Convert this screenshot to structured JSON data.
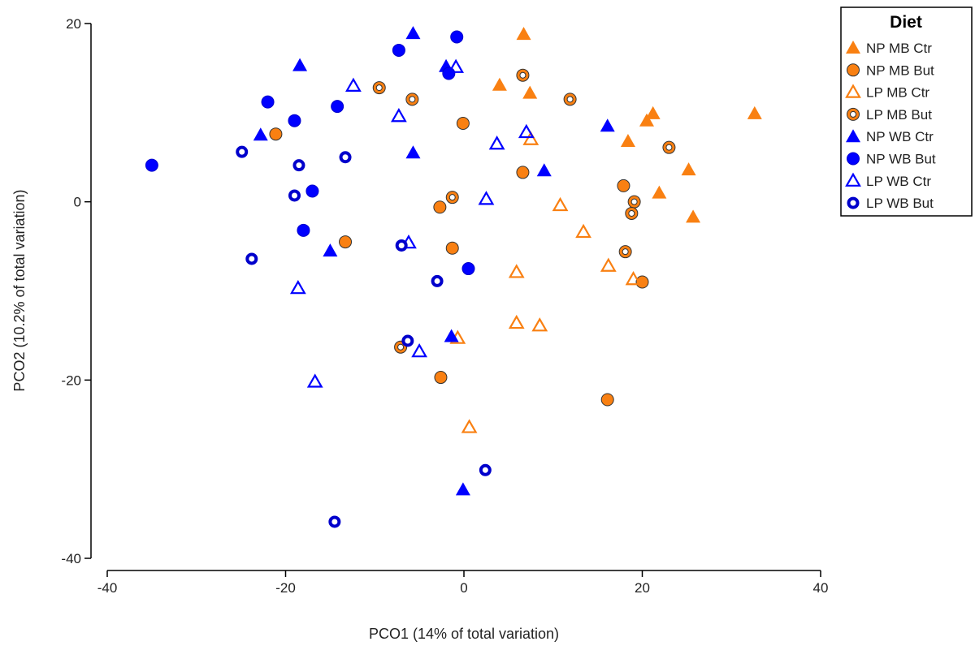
{
  "chart_data": {
    "type": "scatter",
    "xlabel": "PCO1 (14% of total variation)",
    "ylabel": "PCO2 (10.2% of total variation)",
    "xlim": [
      -40,
      40
    ],
    "ylim": [
      -40,
      20
    ],
    "xticks": [
      -40,
      -20,
      0,
      20,
      40
    ],
    "yticks": [
      -40,
      -20,
      0,
      20
    ],
    "grid": false,
    "legend": {
      "title": "Diet",
      "placement": "top-right"
    },
    "colors": {
      "orange": "#f98012",
      "blue": "#0000ff"
    },
    "series": [
      {
        "name": "NP MB Ctr",
        "marker": "triangle-filled",
        "color": "#f98012",
        "points": [
          [
            6.7,
            18.8
          ],
          [
            4.0,
            13.1
          ],
          [
            7.4,
            12.2
          ],
          [
            21.2,
            9.9
          ],
          [
            20.5,
            9.1
          ],
          [
            18.4,
            6.8
          ],
          [
            25.2,
            3.6
          ],
          [
            21.9,
            1.0
          ],
          [
            25.7,
            -1.7
          ],
          [
            32.6,
            9.9
          ]
        ]
      },
      {
        "name": "NP MB But",
        "marker": "circle-filled",
        "color": "#f98012",
        "points": [
          [
            -21.1,
            7.6
          ],
          [
            -0.1,
            8.8
          ],
          [
            6.6,
            3.3
          ],
          [
            17.9,
            1.8
          ],
          [
            -2.7,
            -0.6
          ],
          [
            -13.3,
            -4.5
          ],
          [
            -1.3,
            -5.2
          ],
          [
            20.0,
            -9.0
          ],
          [
            -2.6,
            -19.7
          ],
          [
            16.1,
            -22.2
          ]
        ]
      },
      {
        "name": "LP MB Ctr",
        "marker": "triangle-open",
        "color": "#f98012",
        "points": [
          [
            7.5,
            7.0
          ],
          [
            10.8,
            -0.4
          ],
          [
            13.4,
            -3.4
          ],
          [
            16.2,
            -7.2
          ],
          [
            19.0,
            -8.7
          ],
          [
            5.9,
            -7.9
          ],
          [
            5.9,
            -13.6
          ],
          [
            8.5,
            -13.9
          ],
          [
            -0.7,
            -15.3
          ],
          [
            0.6,
            -25.3
          ]
        ]
      },
      {
        "name": "LP MB But",
        "marker": "ring",
        "color": "#f98012",
        "points": [
          [
            -9.5,
            12.8
          ],
          [
            -5.8,
            11.5
          ],
          [
            6.6,
            14.2
          ],
          [
            11.9,
            11.5
          ],
          [
            23.0,
            6.1
          ],
          [
            19.1,
            0.0
          ],
          [
            18.8,
            -1.3
          ],
          [
            -1.3,
            0.5
          ],
          [
            18.1,
            -5.6
          ],
          [
            -7.1,
            -16.3
          ]
        ]
      },
      {
        "name": "NP WB Ctr",
        "marker": "triangle-filled",
        "color": "#0000ff",
        "points": [
          [
            -5.7,
            18.9
          ],
          [
            -18.4,
            15.3
          ],
          [
            -2.0,
            15.2
          ],
          [
            -22.8,
            7.5
          ],
          [
            -5.7,
            5.5
          ],
          [
            16.1,
            8.5
          ],
          [
            9.0,
            3.5
          ],
          [
            -15.0,
            -5.5
          ],
          [
            -1.4,
            -15.1
          ],
          [
            -0.1,
            -32.3
          ]
        ]
      },
      {
        "name": "NP WB But",
        "marker": "circle-filled",
        "color": "#0000ff",
        "points": [
          [
            -35.0,
            4.1
          ],
          [
            -22.0,
            11.2
          ],
          [
            -19.0,
            9.1
          ],
          [
            -14.2,
            10.7
          ],
          [
            -7.3,
            17.0
          ],
          [
            -0.8,
            18.5
          ],
          [
            -1.7,
            14.4
          ],
          [
            -17.0,
            1.2
          ],
          [
            -18.0,
            -3.2
          ],
          [
            0.5,
            -7.5
          ]
        ]
      },
      {
        "name": "LP WB Ctr",
        "marker": "triangle-open",
        "color": "#0000ff",
        "points": [
          [
            -12.4,
            13.0
          ],
          [
            -0.9,
            15.1
          ],
          [
            -7.3,
            9.6
          ],
          [
            7.0,
            7.8
          ],
          [
            3.7,
            6.5
          ],
          [
            2.5,
            0.3
          ],
          [
            -6.2,
            -4.6
          ],
          [
            -18.6,
            -9.7
          ],
          [
            -5.0,
            -16.8
          ],
          [
            -16.7,
            -20.2
          ]
        ]
      },
      {
        "name": "LP WB But",
        "marker": "ring",
        "color": "#0000ff",
        "points": [
          [
            -24.9,
            5.6
          ],
          [
            -18.5,
            4.1
          ],
          [
            -13.3,
            5.0
          ],
          [
            -19.0,
            0.7
          ],
          [
            -23.8,
            -6.4
          ],
          [
            -7.0,
            -4.9
          ],
          [
            -3.0,
            -8.9
          ],
          [
            -6.3,
            -15.6
          ],
          [
            2.4,
            -30.1
          ],
          [
            -14.5,
            -35.9
          ]
        ]
      }
    ]
  }
}
